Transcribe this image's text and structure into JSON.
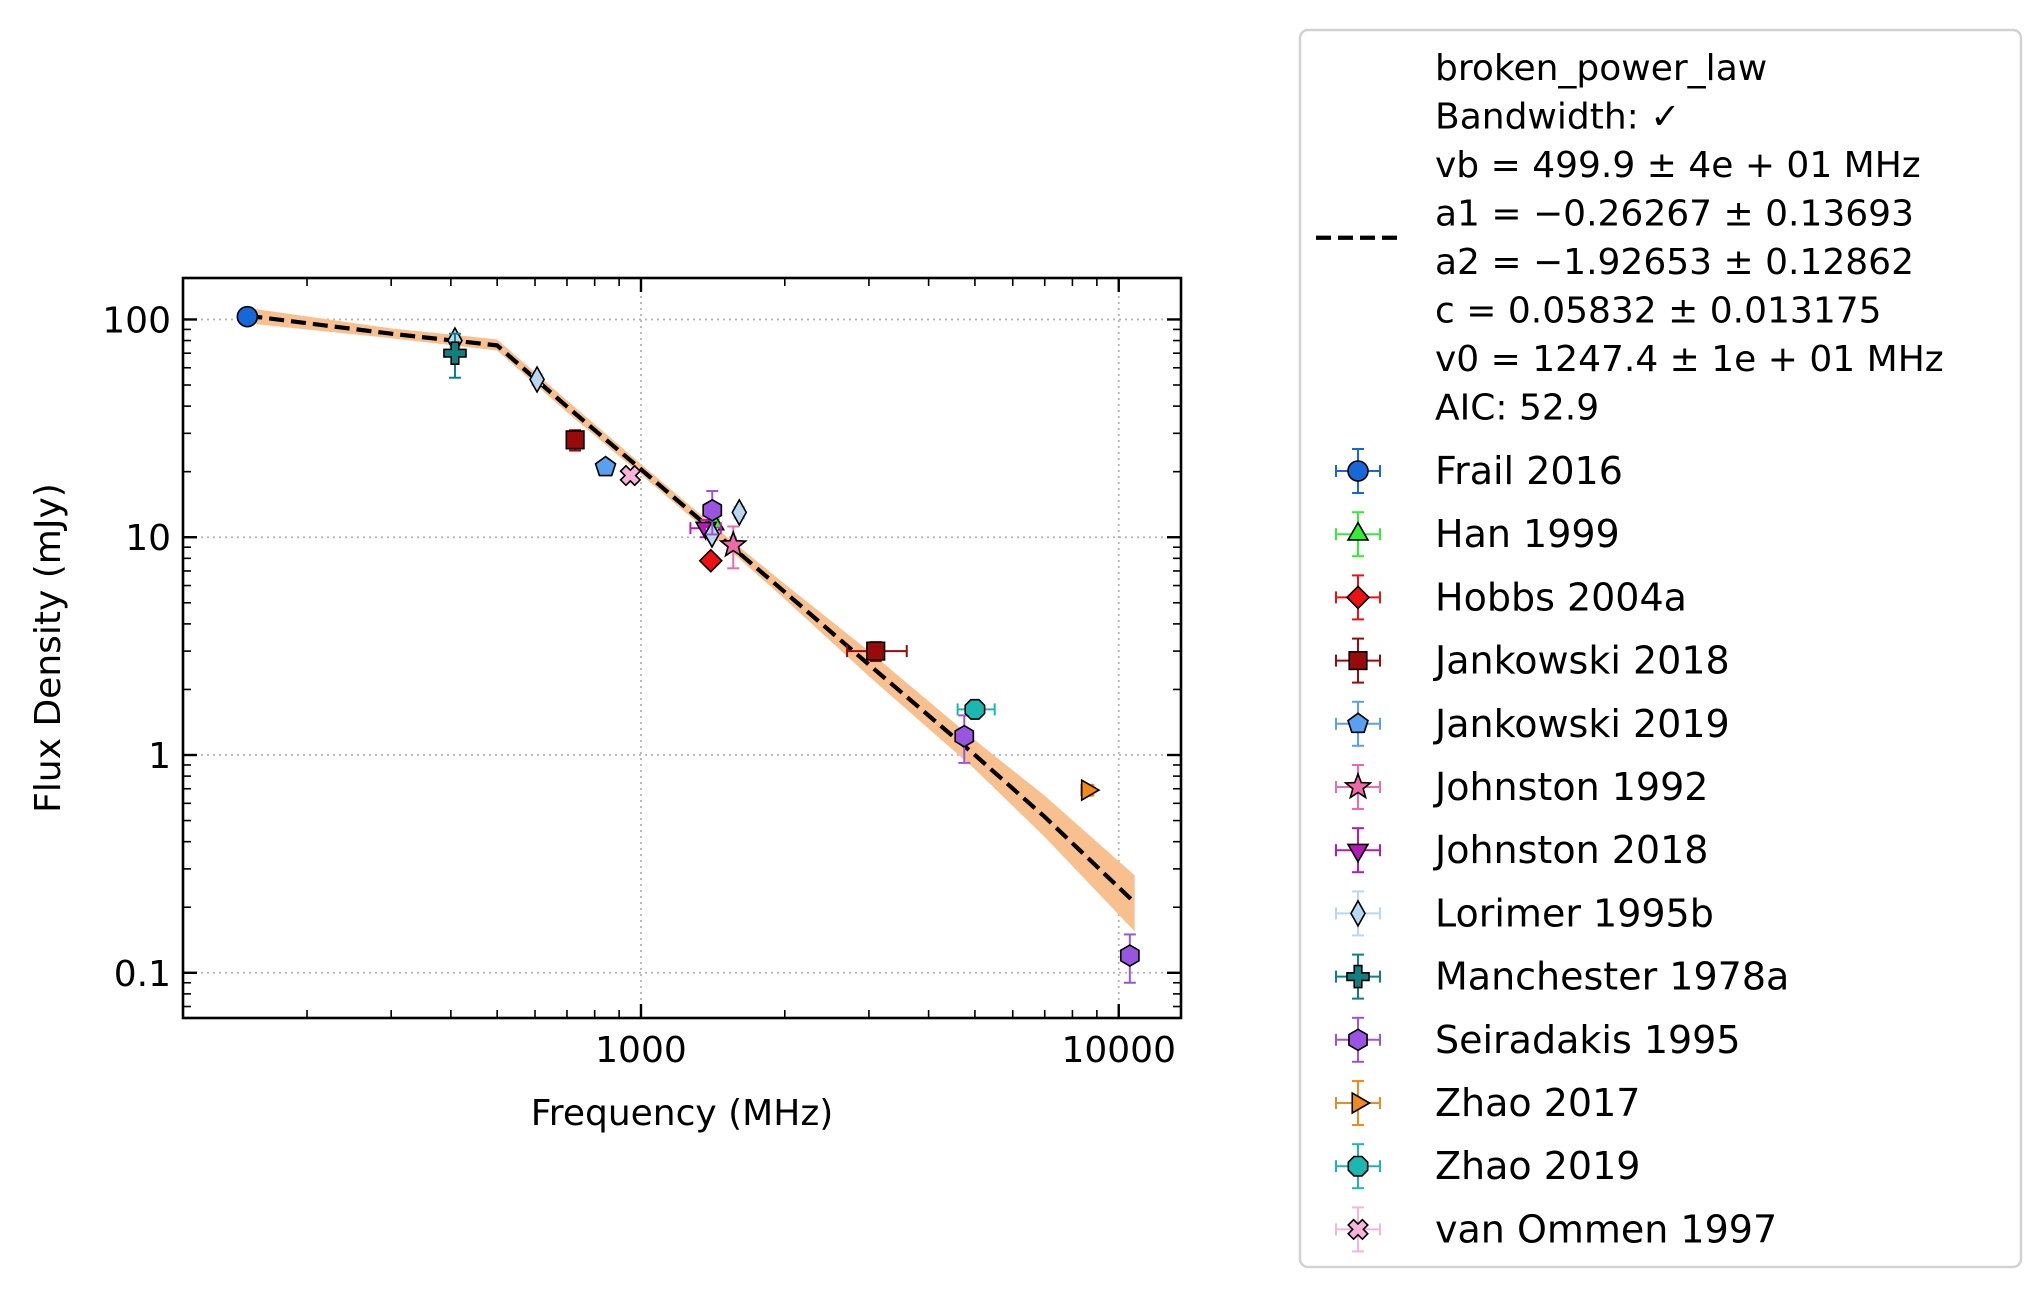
{
  "chart_data": {
    "type": "scatter",
    "xlabel": "Frequency (MHz)",
    "ylabel": "Flux Density (mJy)",
    "xscale": "log",
    "yscale": "log",
    "xlim": [
      110,
      13500
    ],
    "ylim": [
      0.062,
      155
    ],
    "grid": true,
    "legend_position": "outside-right",
    "x_ticks": [
      {
        "value": 1000,
        "label": "1000"
      },
      {
        "value": 10000,
        "label": "10000"
      }
    ],
    "y_ticks": [
      {
        "value": 0.1,
        "label": "0.1"
      },
      {
        "value": 1,
        "label": "1"
      },
      {
        "value": 10,
        "label": "10"
      },
      {
        "value": 100,
        "label": "100"
      }
    ],
    "fit": {
      "model_lines": [
        "broken_power_law",
        "Bandwidth: ✓",
        "vb = 499.9 ± 4e + 01 MHz",
        "a1 = −0.26267 ± 0.13693",
        "a2 = −1.92653 ± 0.12862",
        "c = 0.05832 ± 0.013175",
        "v0 = 1247.4 ± 1e + 01 MHz",
        "AIC: 52.9"
      ],
      "color": "#000000",
      "band_color": "#f9c08f",
      "x": [
        150,
        300,
        499.9,
        700,
        1000,
        1500,
        2000,
        3000,
        5000,
        7000,
        10800
      ],
      "y": [
        104,
        86,
        76,
        39.8,
        20.5,
        9.6,
        5.6,
        2.6,
        1.0,
        0.52,
        0.21
      ],
      "band_low": [
        96,
        82,
        72,
        37.5,
        19.4,
        9.1,
        5.2,
        2.3,
        0.86,
        0.42,
        0.155
      ],
      "band_high": [
        113,
        91,
        81,
        42.5,
        21.7,
        10.2,
        6.1,
        3.0,
        1.17,
        0.65,
        0.28
      ]
    },
    "series": [
      {
        "name": "Frail 2016",
        "marker": "circle",
        "color": "#1668d8",
        "ecolor": "#1668d8",
        "points": [
          {
            "x": 150,
            "y": 103,
            "yerr": [
              5,
              5
            ],
            "xerr": [
              4,
              4
            ]
          }
        ]
      },
      {
        "name": "Han 1999",
        "marker": "triangle-up",
        "color": "#33ee33",
        "ecolor": "#33ee33",
        "points": [
          {
            "x": 1420,
            "y": 11.5,
            "yerr": [
              0.6,
              0.6
            ]
          }
        ]
      },
      {
        "name": "Hobbs 2004a",
        "marker": "diamond",
        "color": "#ee1111",
        "ecolor": "#ee1111",
        "points": [
          {
            "x": 1400,
            "y": 7.8,
            "yerr": [
              0.4,
              0.4
            ]
          }
        ]
      },
      {
        "name": "Jankowski 2018",
        "marker": "square",
        "color": "#9a0a0a",
        "ecolor": "#9a0a0a",
        "points": [
          {
            "x": 728,
            "y": 28,
            "yerr": [
              3,
              3
            ],
            "xerr": [
              20,
              20
            ]
          },
          {
            "x": 3100,
            "y": 3.0,
            "yerr": [
              0.3,
              0.3
            ],
            "xerr": [
              400,
              500
            ]
          }
        ]
      },
      {
        "name": "Jankowski 2019",
        "marker": "pentagon",
        "color": "#5aa0f0",
        "ecolor": "#5aa0f0",
        "points": [
          {
            "x": 843,
            "y": 21,
            "yerr": [
              1,
              1
            ]
          }
        ]
      },
      {
        "name": "Johnston 1992",
        "marker": "star",
        "color": "#f06aa8",
        "ecolor": "#f06aa8",
        "points": [
          {
            "x": 1560,
            "y": 9.2,
            "yerr": [
              2,
              2
            ]
          }
        ]
      },
      {
        "name": "Johnston 2018",
        "marker": "triangle-down",
        "color": "#b61ab6",
        "ecolor": "#b61ab6",
        "points": [
          {
            "x": 1369,
            "y": 11,
            "yerr": [
              1,
              1
            ],
            "xerr": [
              100,
              100
            ]
          }
        ]
      },
      {
        "name": "Lorimer 1995b",
        "marker": "thin-diamond",
        "color": "#b8d8f2",
        "ecolor": "#b8d8f2",
        "points": [
          {
            "x": 408,
            "y": 80,
            "yerr": [
              5,
              5
            ]
          },
          {
            "x": 606,
            "y": 53,
            "yerr": [
              3,
              3
            ]
          },
          {
            "x": 1408,
            "y": 10.3,
            "yerr": [
              0.6,
              0.6
            ]
          },
          {
            "x": 1606,
            "y": 13,
            "yerr": [
              0.8,
              0.8
            ]
          }
        ]
      },
      {
        "name": "Manchester 1978a",
        "marker": "plus",
        "color": "#0f7f7f",
        "ecolor": "#0f7f7f",
        "points": [
          {
            "x": 408,
            "y": 70,
            "yerr": [
              16,
              16
            ]
          }
        ]
      },
      {
        "name": "Seiradakis 1995",
        "marker": "hexagon",
        "color": "#9a55e0",
        "ecolor": "#9a55e0",
        "points": [
          {
            "x": 1410,
            "y": 13.3,
            "yerr": [
              3,
              3
            ]
          },
          {
            "x": 4750,
            "y": 1.22,
            "yerr": [
              0.3,
              0.3
            ]
          },
          {
            "x": 10550,
            "y": 0.12,
            "yerr": [
              0.03,
              0.03
            ]
          }
        ]
      },
      {
        "name": "Zhao 2017",
        "marker": "triangle-right",
        "color": "#f08a1a",
        "ecolor": "#f08a1a",
        "points": [
          {
            "x": 8600,
            "y": 0.69,
            "yerr": [
              0.04,
              0.04
            ],
            "xerr": [
              250,
              250
            ]
          }
        ]
      },
      {
        "name": "Zhao 2019",
        "marker": "octagon",
        "color": "#1ab8b0",
        "ecolor": "#1ab8b0",
        "points": [
          {
            "x": 5000,
            "y": 1.62,
            "yerr": [
              0.1,
              0.1
            ],
            "xerr": [
              400,
              500
            ]
          }
        ]
      },
      {
        "name": "van Ommen 1997",
        "marker": "x-filled",
        "color": "#f6b4da",
        "ecolor": "#f6b4da",
        "points": [
          {
            "x": 950,
            "y": 19.2,
            "yerr": [
              1.2,
              1.2
            ]
          }
        ]
      }
    ]
  }
}
